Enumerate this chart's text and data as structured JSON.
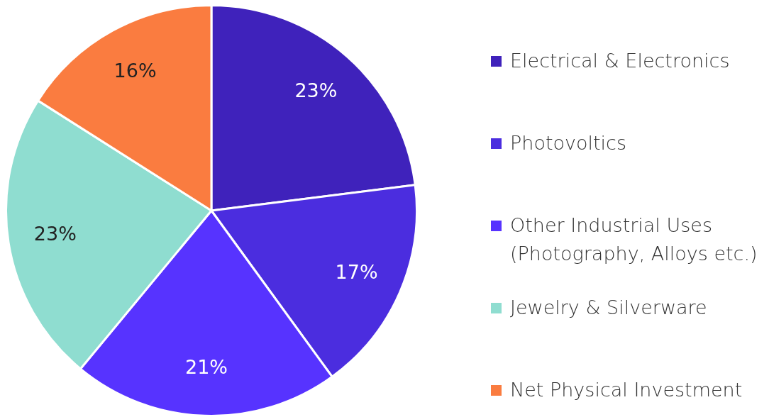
{
  "chart_data": {
    "type": "pie",
    "categories": [
      "Electrical & Electronics",
      "Photovoltics",
      "Other Industrial Uses (Photography, Alloys etc.)",
      "Jewelry & Silverware",
      "Net Physical Investment"
    ],
    "values": [
      23,
      17,
      21,
      23,
      16
    ],
    "colors": [
      "#3f22bb",
      "#4b2ddf",
      "#5733ff",
      "#8fddd0",
      "#fa7c40"
    ],
    "value_labels": [
      "23%",
      "17%",
      "21%",
      "23%",
      "16%"
    ],
    "legend": "right"
  }
}
